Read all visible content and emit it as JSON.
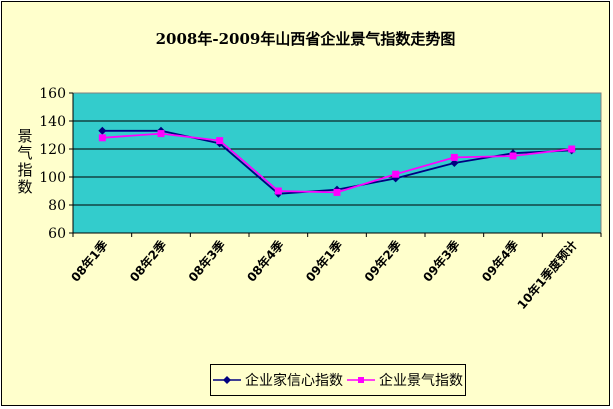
{
  "chart_data": {
    "type": "line",
    "title": "2008年-2009年山西省企业景气指数走势图",
    "xlabel": "",
    "ylabel": "景气指数",
    "categories": [
      "08年1季",
      "08年2季",
      "08年3季",
      "08年4季",
      "09年1季",
      "09年2季",
      "09年3季",
      "09年4季",
      "10年1季度预计"
    ],
    "ylim": [
      60,
      160
    ],
    "yticks": [
      60,
      80,
      100,
      120,
      140,
      160
    ],
    "grid": true,
    "legend_position": "bottom",
    "plot_background": "#33cccc",
    "chart_background": "#ffffcc",
    "series": [
      {
        "name": "企业家信心指数",
        "color": "#000080",
        "marker": "diamond",
        "values": [
          133,
          133,
          124,
          88,
          91,
          99,
          110,
          117,
          119
        ]
      },
      {
        "name": "企业景气指数",
        "color": "#ff00ff",
        "marker": "square",
        "values": [
          128,
          131,
          126,
          90,
          89,
          102,
          114,
          115,
          120
        ]
      }
    ]
  }
}
